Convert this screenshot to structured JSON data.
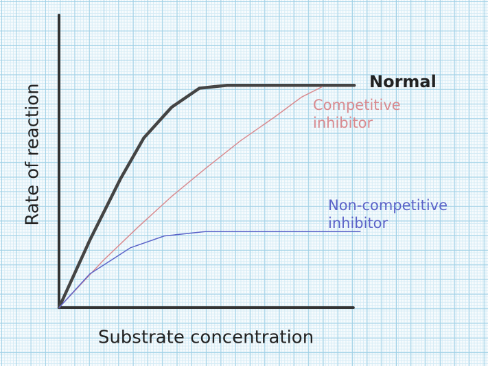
{
  "chart_data": {
    "type": "line",
    "x_label": "Substrate concentration",
    "y_label": "Rate of reaction",
    "xlim": [
      0,
      20.6
    ],
    "ylim": [
      0,
      20
    ],
    "series": [
      {
        "name": "Normal",
        "color": "#444444",
        "x": [
          0,
          2.1,
          4.2,
          5.8,
          7.7,
          9.6,
          11.5,
          20.2
        ],
        "values": [
          0,
          4.6,
          8.8,
          11.6,
          13.7,
          15.0,
          15.2,
          15.2
        ]
      },
      {
        "name": "Competitive inhibitor",
        "color": "#d98a8f",
        "x": [
          0,
          3,
          5.4,
          7.7,
          10,
          12.4,
          14.7,
          16.6,
          18
        ],
        "values": [
          0,
          3.2,
          5.5,
          7.6,
          9.5,
          11.4,
          13,
          14.4,
          15.1
        ]
      },
      {
        "name": "Non-competitive inhibitor",
        "color": "#5a63c8",
        "x": [
          0,
          2.1,
          4.9,
          7.2,
          10,
          14.7,
          20.6
        ],
        "values": [
          0,
          2.3,
          4.1,
          4.9,
          5.2,
          5.2,
          5.2
        ]
      }
    ]
  }
}
